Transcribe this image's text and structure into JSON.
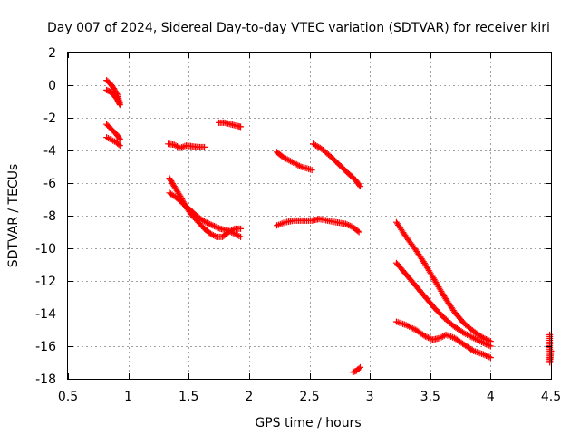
{
  "chart_data": {
    "type": "scatter",
    "title": "Day 007 of 2024, Sidereal Day-to-day VTEC variation (SDTVAR) for receiver kiri",
    "xlabel": "GPS time / hours",
    "ylabel": "SDTVAR / TECUs",
    "xlim": [
      0.5,
      4.5
    ],
    "ylim": [
      -18,
      2
    ],
    "xticks": [
      0.5,
      1,
      1.5,
      2,
      2.5,
      3,
      3.5,
      4,
      4.5
    ],
    "xtick_labels": [
      "0.5",
      "1",
      "1.5",
      "2",
      "2.5",
      "3",
      "3.5",
      "4",
      "4.5"
    ],
    "yticks": [
      2,
      0,
      -2,
      -4,
      -6,
      -8,
      -10,
      -12,
      -14,
      -16,
      -18
    ],
    "ytick_labels": [
      "2",
      "0",
      "-2",
      "-4",
      "-6",
      "-8",
      "-10",
      "-12",
      "-14",
      "-16",
      "-18"
    ],
    "grid": true,
    "marker": "+",
    "color": "#ff0000",
    "series": [
      {
        "name": "s1a",
        "points": [
          [
            0.82,
            0.3
          ],
          [
            0.85,
            0.1
          ],
          [
            0.88,
            -0.2
          ],
          [
            0.91,
            -0.6
          ],
          [
            0.93,
            -1.1
          ]
        ]
      },
      {
        "name": "s1b",
        "points": [
          [
            0.82,
            -0.3
          ],
          [
            0.85,
            -0.4
          ],
          [
            0.88,
            -0.6
          ],
          [
            0.91,
            -0.9
          ],
          [
            0.93,
            -1.2
          ]
        ]
      },
      {
        "name": "s2a",
        "points": [
          [
            0.82,
            -2.4
          ],
          [
            0.86,
            -2.7
          ],
          [
            0.9,
            -3.0
          ],
          [
            0.93,
            -3.3
          ]
        ]
      },
      {
        "name": "s2b",
        "points": [
          [
            0.82,
            -3.2
          ],
          [
            0.86,
            -3.35
          ],
          [
            0.9,
            -3.5
          ],
          [
            0.93,
            -3.7
          ]
        ]
      },
      {
        "name": "s3",
        "points": [
          [
            1.33,
            -3.6
          ],
          [
            1.38,
            -3.65
          ],
          [
            1.43,
            -3.85
          ],
          [
            1.48,
            -3.7
          ],
          [
            1.53,
            -3.75
          ],
          [
            1.58,
            -3.8
          ],
          [
            1.63,
            -3.8
          ]
        ]
      },
      {
        "name": "s4",
        "points": [
          [
            1.75,
            -2.3
          ],
          [
            1.8,
            -2.3
          ],
          [
            1.85,
            -2.4
          ],
          [
            1.9,
            -2.5
          ],
          [
            1.93,
            -2.55
          ]
        ]
      },
      {
        "name": "s5a",
        "points": [
          [
            1.34,
            -5.7
          ],
          [
            1.38,
            -6.2
          ],
          [
            1.43,
            -6.8
          ],
          [
            1.48,
            -7.5
          ],
          [
            1.53,
            -8.0
          ],
          [
            1.58,
            -8.4
          ],
          [
            1.63,
            -8.8
          ],
          [
            1.68,
            -9.1
          ],
          [
            1.73,
            -9.3
          ],
          [
            1.78,
            -9.3
          ],
          [
            1.83,
            -9.0
          ],
          [
            1.88,
            -8.8
          ],
          [
            1.93,
            -8.8
          ]
        ]
      },
      {
        "name": "s5b",
        "points": [
          [
            1.34,
            -6.6
          ],
          [
            1.4,
            -6.9
          ],
          [
            1.46,
            -7.3
          ],
          [
            1.52,
            -7.7
          ],
          [
            1.58,
            -8.1
          ],
          [
            1.64,
            -8.4
          ],
          [
            1.7,
            -8.6
          ],
          [
            1.76,
            -8.8
          ],
          [
            1.82,
            -8.9
          ],
          [
            1.88,
            -9.1
          ],
          [
            1.93,
            -9.3
          ]
        ]
      },
      {
        "name": "s6",
        "points": [
          [
            2.23,
            -4.1
          ],
          [
            2.28,
            -4.4
          ],
          [
            2.33,
            -4.6
          ],
          [
            2.38,
            -4.8
          ],
          [
            2.43,
            -5.0
          ],
          [
            2.48,
            -5.1
          ],
          [
            2.52,
            -5.2
          ]
        ]
      },
      {
        "name": "s7",
        "points": [
          [
            2.53,
            -3.6
          ],
          [
            2.6,
            -3.9
          ],
          [
            2.68,
            -4.4
          ],
          [
            2.75,
            -4.9
          ],
          [
            2.82,
            -5.4
          ],
          [
            2.88,
            -5.8
          ],
          [
            2.92,
            -6.2
          ]
        ]
      },
      {
        "name": "s8",
        "points": [
          [
            2.23,
            -8.6
          ],
          [
            2.3,
            -8.4
          ],
          [
            2.37,
            -8.3
          ],
          [
            2.45,
            -8.3
          ],
          [
            2.52,
            -8.3
          ],
          [
            2.58,
            -8.2
          ],
          [
            2.65,
            -8.3
          ],
          [
            2.72,
            -8.4
          ],
          [
            2.8,
            -8.5
          ],
          [
            2.86,
            -8.7
          ],
          [
            2.91,
            -9.0
          ]
        ]
      },
      {
        "name": "s9",
        "points": [
          [
            2.86,
            -17.6
          ],
          [
            2.89,
            -17.5
          ],
          [
            2.92,
            -17.3
          ]
        ]
      },
      {
        "name": "s10a",
        "points": [
          [
            3.22,
            -8.4
          ],
          [
            3.3,
            -9.3
          ],
          [
            3.38,
            -10.1
          ],
          [
            3.46,
            -11.0
          ],
          [
            3.54,
            -12.0
          ],
          [
            3.62,
            -13.0
          ],
          [
            3.7,
            -13.9
          ],
          [
            3.78,
            -14.6
          ],
          [
            3.86,
            -15.1
          ],
          [
            3.94,
            -15.5
          ],
          [
            4.0,
            -15.7
          ]
        ]
      },
      {
        "name": "s10b",
        "points": [
          [
            3.22,
            -10.9
          ],
          [
            3.3,
            -11.6
          ],
          [
            3.38,
            -12.3
          ],
          [
            3.46,
            -13.0
          ],
          [
            3.54,
            -13.7
          ],
          [
            3.62,
            -14.3
          ],
          [
            3.7,
            -14.8
          ],
          [
            3.78,
            -15.2
          ],
          [
            3.86,
            -15.5
          ],
          [
            3.94,
            -15.8
          ],
          [
            4.0,
            -16.0
          ]
        ]
      },
      {
        "name": "s10c",
        "points": [
          [
            3.22,
            -14.5
          ],
          [
            3.3,
            -14.7
          ],
          [
            3.38,
            -15.0
          ],
          [
            3.46,
            -15.4
          ],
          [
            3.52,
            -15.6
          ],
          [
            3.58,
            -15.5
          ],
          [
            3.63,
            -15.3
          ],
          [
            3.7,
            -15.5
          ],
          [
            3.78,
            -15.9
          ],
          [
            3.86,
            -16.3
          ],
          [
            3.94,
            -16.5
          ],
          [
            4.0,
            -16.7
          ]
        ]
      },
      {
        "name": "s11",
        "points": [
          [
            4.49,
            -15.3
          ],
          [
            4.49,
            -16.4
          ],
          [
            4.49,
            -17.0
          ],
          [
            4.5,
            -16.3
          ]
        ]
      }
    ]
  }
}
